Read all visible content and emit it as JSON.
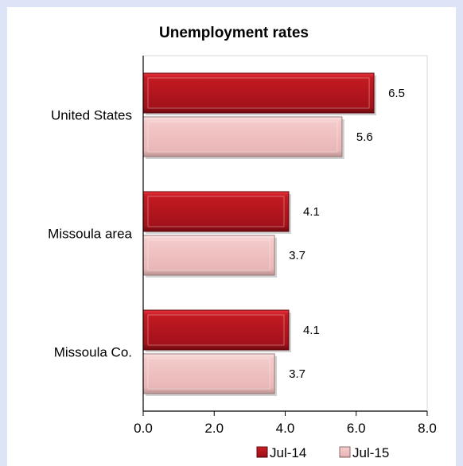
{
  "chart_data": {
    "type": "bar",
    "orientation": "horizontal",
    "title": "Unemployment rates",
    "categories": [
      "United States",
      "Missoula area",
      "Missoula Co."
    ],
    "series": [
      {
        "name": "Jul-14",
        "values": [
          6.5,
          4.1,
          4.1
        ],
        "color": "#b5121b"
      },
      {
        "name": "Jul-15",
        "values": [
          5.6,
          3.7,
          3.7
        ],
        "color": "#f2c4c4"
      }
    ],
    "xlim": [
      0,
      8
    ],
    "xticks": [
      "0.0",
      "2.0",
      "4.0",
      "6.0",
      "8.0"
    ],
    "grid": false,
    "legend": "bottom-right",
    "xlabel": "",
    "ylabel": ""
  }
}
